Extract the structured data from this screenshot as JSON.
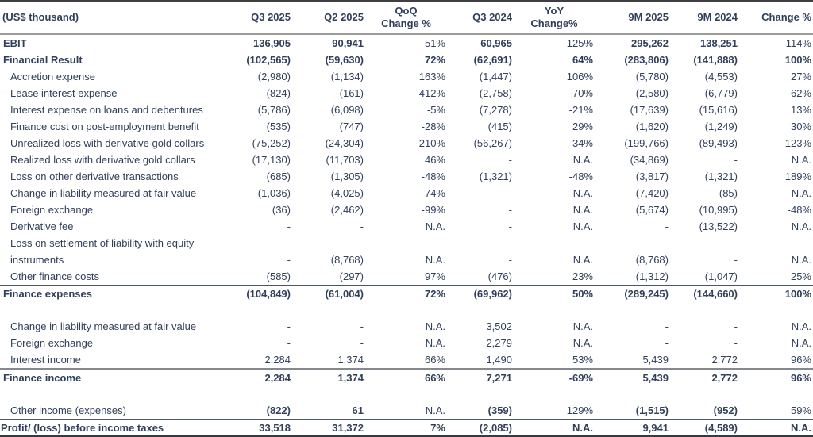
{
  "table": {
    "unit_label": "(US$ thousand)",
    "columns": [
      {
        "key": "q3-2025",
        "label": "Q3 2025"
      },
      {
        "key": "q2-2025",
        "label": "Q2 2025"
      },
      {
        "key": "qoq-change",
        "label": "QoQ\nChange %"
      },
      {
        "key": "q3-2024",
        "label": "Q3 2024"
      },
      {
        "key": "yoy-change",
        "label": "YoY\nChange%"
      },
      {
        "key": "9m-2025",
        "label": "9M 2025"
      },
      {
        "key": "9m-2024",
        "label": "9M 2024"
      },
      {
        "key": "change-9m",
        "label": "Change %"
      }
    ],
    "rows": [
      {
        "type": "row",
        "label": "EBIT",
        "indent": 1,
        "bold_label": true,
        "bold_values": true,
        "bold_pcts": false,
        "border_top": null,
        "values": [
          "136,905",
          "90,941",
          "51%",
          "60,965",
          "125%",
          "295,262",
          "138,251",
          "114%"
        ]
      },
      {
        "type": "row",
        "label": "Financial Result",
        "indent": 1,
        "bold_label": true,
        "bold_values": true,
        "bold_pcts": true,
        "border_top": null,
        "values": [
          "(102,565)",
          "(59,630)",
          "72%",
          "(62,691)",
          "64%",
          "(283,806)",
          "(141,888)",
          "100%"
        ]
      },
      {
        "type": "row",
        "label": "Accretion expense",
        "indent": 2,
        "bold_label": false,
        "bold_values": false,
        "bold_pcts": false,
        "border_top": null,
        "values": [
          "(2,980)",
          "(1,134)",
          "163%",
          "(1,447)",
          "106%",
          "(5,780)",
          "(4,553)",
          "27%"
        ]
      },
      {
        "type": "row",
        "label": "Lease interest expense",
        "indent": 2,
        "bold_label": false,
        "bold_values": false,
        "bold_pcts": false,
        "border_top": null,
        "values": [
          "(824)",
          "(161)",
          "412%",
          "(2,758)",
          "-70%",
          "(2,580)",
          "(6,779)",
          "-62%"
        ]
      },
      {
        "type": "row",
        "label": "Interest expense on loans and debentures",
        "indent": 2,
        "bold_label": false,
        "bold_values": false,
        "bold_pcts": false,
        "border_top": null,
        "values": [
          "(5,786)",
          "(6,098)",
          "-5%",
          "(7,278)",
          "-21%",
          "(17,639)",
          "(15,616)",
          "13%"
        ]
      },
      {
        "type": "row",
        "label": "Finance cost on post-employment benefit",
        "indent": 2,
        "bold_label": false,
        "bold_values": false,
        "bold_pcts": false,
        "border_top": null,
        "values": [
          "(535)",
          "(747)",
          "-28%",
          "(415)",
          "29%",
          "(1,620)",
          "(1,249)",
          "30%"
        ]
      },
      {
        "type": "row",
        "label": "Unrealized loss with derivative gold collars",
        "indent": 2,
        "bold_label": false,
        "bold_values": false,
        "bold_pcts": false,
        "border_top": null,
        "values": [
          "(75,252)",
          "(24,304)",
          "210%",
          "(56,267)",
          "34%",
          "(199,766)",
          "(89,493)",
          "123%"
        ]
      },
      {
        "type": "row",
        "label": "Realized loss with derivative gold collars",
        "indent": 2,
        "bold_label": false,
        "bold_values": false,
        "bold_pcts": false,
        "border_top": null,
        "values": [
          "(17,130)",
          "(11,703)",
          "46%",
          "-",
          "N.A.",
          "(34,869)",
          "-",
          "N.A."
        ]
      },
      {
        "type": "row",
        "label": "Loss on other derivative transactions",
        "indent": 2,
        "bold_label": false,
        "bold_values": false,
        "bold_pcts": false,
        "border_top": null,
        "values": [
          "(685)",
          "(1,305)",
          "-48%",
          "(1,321)",
          "-48%",
          "(3,817)",
          "(1,321)",
          "189%"
        ]
      },
      {
        "type": "row",
        "label": "Change in liability measured at fair value",
        "indent": 2,
        "bold_label": false,
        "bold_values": false,
        "bold_pcts": false,
        "border_top": null,
        "values": [
          "(1,036)",
          "(4,025)",
          "-74%",
          "-",
          "N.A.",
          "(7,420)",
          "(85)",
          "N.A."
        ]
      },
      {
        "type": "row",
        "label": "Foreign exchange",
        "indent": 2,
        "bold_label": false,
        "bold_values": false,
        "bold_pcts": false,
        "border_top": null,
        "values": [
          "(36)",
          "(2,462)",
          "-99%",
          "-",
          "N.A.",
          "(5,674)",
          "(10,995)",
          "-48%"
        ]
      },
      {
        "type": "row",
        "label": "Derivative fee",
        "indent": 2,
        "bold_label": false,
        "bold_values": false,
        "bold_pcts": false,
        "border_top": null,
        "values": [
          "-",
          "-",
          "N.A.",
          "-",
          "N.A.",
          "-",
          "(13,522)",
          "N.A."
        ]
      },
      {
        "type": "row",
        "label": "Loss on settlement of liability with equity instruments",
        "indent": 2,
        "bold_label": false,
        "bold_values": false,
        "bold_pcts": false,
        "border_top": null,
        "values": [
          "-",
          "(8,768)",
          "N.A.",
          "-",
          "N.A.",
          "(8,768)",
          "-",
          "N.A."
        ]
      },
      {
        "type": "row",
        "label": "Other finance costs",
        "indent": 2,
        "bold_label": false,
        "bold_values": false,
        "bold_pcts": false,
        "border_top": null,
        "values": [
          "(585)",
          "(297)",
          "97%",
          "(476)",
          "23%",
          "(1,312)",
          "(1,047)",
          "25%"
        ]
      },
      {
        "type": "row",
        "label": "Finance expenses",
        "indent": 1,
        "bold_label": true,
        "bold_values": true,
        "bold_pcts": true,
        "border_top": "thin",
        "values": [
          "(104,849)",
          "(61,004)",
          "72%",
          "(69,962)",
          "50%",
          "(289,245)",
          "(144,660)",
          "100%"
        ]
      },
      {
        "type": "spacer"
      },
      {
        "type": "row",
        "label": "Change in liability measured at fair value",
        "indent": 2,
        "bold_label": false,
        "bold_values": false,
        "bold_pcts": false,
        "border_top": null,
        "values": [
          "-",
          "-",
          "N.A.",
          "3,502",
          "N.A.",
          "-",
          "-",
          "N.A."
        ]
      },
      {
        "type": "row",
        "label": "Foreign exchange",
        "indent": 2,
        "bold_label": false,
        "bold_values": false,
        "bold_pcts": false,
        "border_top": null,
        "values": [
          "-",
          "-",
          "N.A.",
          "2,279",
          "N.A.",
          "-",
          "-",
          "N.A."
        ]
      },
      {
        "type": "row",
        "label": "Interest income",
        "indent": 2,
        "bold_label": false,
        "bold_values": false,
        "bold_pcts": false,
        "border_top": null,
        "values": [
          "2,284",
          "1,374",
          "66%",
          "1,490",
          "53%",
          "5,439",
          "2,772",
          "96%"
        ]
      },
      {
        "type": "row",
        "label": "Finance income",
        "indent": 1,
        "bold_label": true,
        "bold_values": true,
        "bold_pcts": true,
        "border_top": "thick",
        "values": [
          "2,284",
          "1,374",
          "66%",
          "7,271",
          "-69%",
          "5,439",
          "2,772",
          "96%"
        ]
      },
      {
        "type": "spacer"
      },
      {
        "type": "row",
        "label": "Other income (expenses)",
        "indent": 2,
        "bold_label": false,
        "bold_values": true,
        "bold_pcts": false,
        "border_top": null,
        "values": [
          "(822)",
          "61",
          "N.A.",
          "(359)",
          "129%",
          "(1,515)",
          "(952)",
          "59%"
        ]
      },
      {
        "type": "row",
        "label": "Profit/ (loss) before income taxes",
        "indent": 0,
        "bold_label": true,
        "bold_values": true,
        "bold_pcts": true,
        "border_top": "thin",
        "values": [
          "33,518",
          "31,372",
          "7%",
          "(2,085)",
          "N.A.",
          "9,941",
          "(4,589)",
          "N.A."
        ]
      }
    ]
  }
}
